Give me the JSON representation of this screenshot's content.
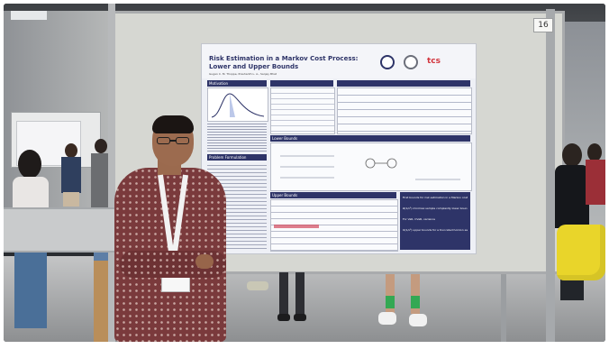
{
  "photo": {
    "board_number": "16",
    "poster": {
      "title_line1": "Risk Estimation in a Markov Cost Process:",
      "title_line2": "Lower and Upper Bounds",
      "authors": "Gugan C. M. Thoppe, Prashanth L. A., Sanjay Bhat",
      "logo_text": "tcs",
      "sections": {
        "motivation": "Motivation",
        "problem": "Problem Formulation",
        "lower_bounds": "Lower Bounds",
        "upper_bounds": "Upper Bounds"
      },
      "highlights": [
        "First bounds for risk estimation in a Markov cost process",
        "Ω(1/ε²) minimax sample complexity lower bounds",
        "For VaR, CVaR, variance",
        "O(1/ε²) upper bounds for a truncated horizon estimation scheme"
      ]
    },
    "palette": {
      "poster_navy": "#2e3468",
      "poster_paper": "#eef0f6",
      "board": "#d6d7d2",
      "shirt": "#7a3a3c",
      "lanyard": "#f2f2f2",
      "backpack_yellow": "#e9d52a"
    }
  }
}
